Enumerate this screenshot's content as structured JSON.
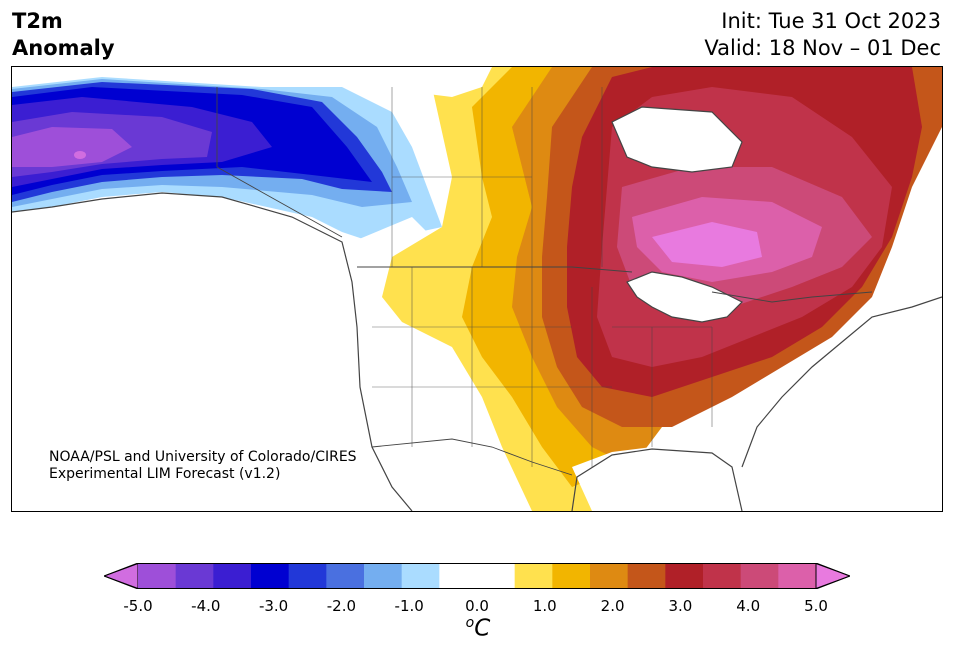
{
  "title": {
    "line1": "T2m",
    "line2": "Anomaly"
  },
  "timing": {
    "init": "Init: Tue 31 Oct 2023",
    "valid": "Valid: 18 Nov – 01 Dec"
  },
  "credit": {
    "line1": "NOAA/PSL and University of Colorado/CIRES",
    "line2": "Experimental LIM Forecast (v1.2)"
  },
  "colorbar": {
    "unit_sup": "o",
    "unit_main": "C",
    "ticks": [
      "-5.0",
      "-4.0",
      "-3.0",
      "-2.0",
      "-1.0",
      "0.0",
      "1.0",
      "2.0",
      "3.0",
      "4.0",
      "5.0"
    ],
    "colors": [
      "#d16de0",
      "#9e4fd9",
      "#6a39d4",
      "#3b1ed2",
      "#0000d1",
      "#2238d8",
      "#4a70e0",
      "#74aef0",
      "#aadcff",
      "#ffffff",
      "#ffffff",
      "#ffe14e",
      "#f2b500",
      "#de8a12",
      "#c4561a",
      "#b02028",
      "#c0334a",
      "#cc4a78",
      "#dc60aa",
      "#e87adf"
    ]
  },
  "map_colors": {
    "ocean": "#ffffff",
    "coast": "#444444"
  }
}
